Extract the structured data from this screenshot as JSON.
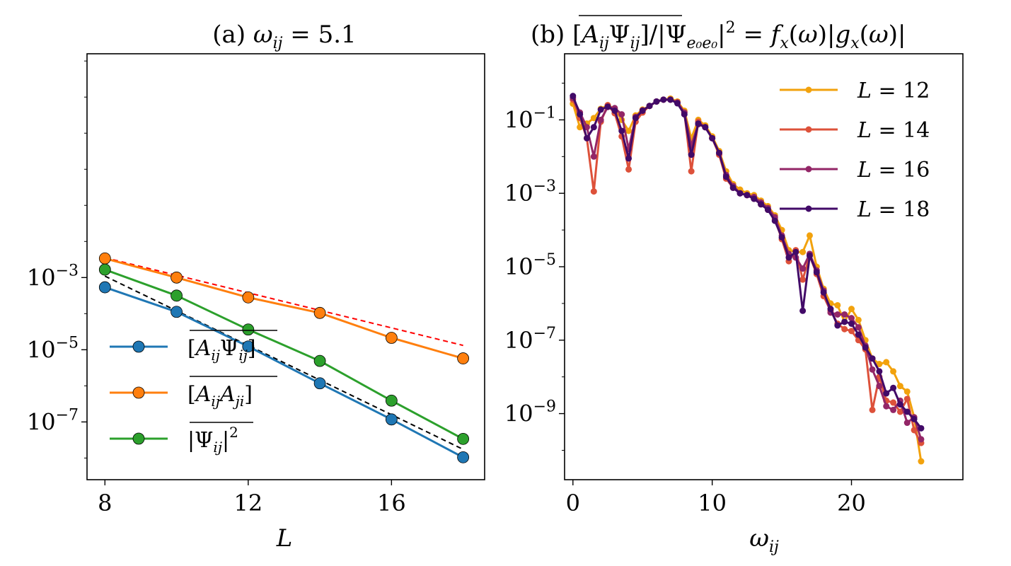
{
  "chart_data": [
    {
      "type": "line",
      "title": "(a) ω_ij = 5.1",
      "xlabel": "L",
      "ylabel": "",
      "yscale": "log",
      "xlim": [
        7.5,
        18.6
      ],
      "ylim_log10": [
        -8.6,
        3.2
      ],
      "xticks": [
        8,
        12,
        16
      ],
      "xtick_labels": [
        "8",
        "12",
        "16"
      ],
      "yticks_log10": [
        -7,
        -5,
        -3
      ],
      "ytick_labels": [
        "10⁻⁷",
        "10⁻⁵",
        "10⁻³"
      ],
      "grid": false,
      "legend_position": "lower-left",
      "x": [
        8,
        10,
        12,
        14,
        16,
        18
      ],
      "series": [
        {
          "name": "[A_ij Ψ_ij]",
          "color": "#1f77b4",
          "log10_values": [
            -3.27,
            -3.95,
            -4.91,
            -5.93,
            -6.93,
            -7.98
          ]
        },
        {
          "name": "[A_ij A_ji]",
          "color": "#ff7f0e",
          "log10_values": [
            -2.47,
            -3.0,
            -3.55,
            -3.98,
            -4.67,
            -5.24
          ]
        },
        {
          "name": "|Ψ_ij|²",
          "color": "#2ca02c",
          "log10_values": [
            -2.78,
            -3.5,
            -4.44,
            -5.31,
            -6.41,
            -7.47
          ]
        }
      ],
      "reference_lines": [
        {
          "color": "#ff0000",
          "style": "dashed",
          "x": [
            8,
            18
          ],
          "log10_values": [
            -2.45,
            -4.88
          ]
        },
        {
          "color": "#000000",
          "style": "dashed",
          "x": [
            8,
            18
          ],
          "log10_values": [
            -2.96,
            -7.76
          ]
        }
      ]
    },
    {
      "type": "line",
      "title": "(b) [A_ij Ψ_ij]/|Ψ_e0e0|² = f_x(ω)|g_x(ω)|",
      "xlabel": "ω_ij",
      "ylabel": "",
      "yscale": "log",
      "xlim": [
        -0.6,
        28
      ],
      "ylim_log10": [
        -10.8,
        0.8
      ],
      "xticks": [
        0,
        10,
        20
      ],
      "xtick_labels": [
        "0",
        "10",
        "20"
      ],
      "yticks_log10": [
        -9,
        -7,
        -5,
        -3,
        -1
      ],
      "ytick_labels": [
        "10⁻⁹",
        "10⁻⁷",
        "10⁻⁵",
        "10⁻³",
        "10⁻¹"
      ],
      "grid": false,
      "legend_position": "top-right",
      "x": [
        0,
        0.5,
        1,
        1.5,
        2,
        2.5,
        3,
        3.5,
        4,
        4.5,
        5,
        5.5,
        6,
        6.5,
        7,
        7.5,
        8,
        8.5,
        9,
        9.5,
        10,
        10.5,
        11,
        11.5,
        12,
        12.5,
        13,
        13.5,
        14,
        14.5,
        15,
        15.5,
        16,
        16.5,
        17,
        17.5,
        18,
        18.5,
        19,
        19.5,
        20,
        20.5,
        21,
        21.5,
        22,
        22.5,
        23,
        23.5,
        24,
        24.5,
        25
      ],
      "series": [
        {
          "name": "L = 12",
          "color": "#f2a20d",
          "log10_values": [
            -0.56,
            -1.2,
            -1.1,
            -0.95,
            -0.7,
            -0.6,
            -0.7,
            -1.0,
            -1.3,
            -0.88,
            -0.72,
            -0.62,
            -0.5,
            -0.45,
            -0.42,
            -0.5,
            -0.75,
            -1.5,
            -1.0,
            -1.15,
            -1.45,
            -1.85,
            -2.4,
            -2.75,
            -2.9,
            -3.0,
            -3.05,
            -3.2,
            -3.35,
            -3.6,
            -4.0,
            -4.55,
            -4.6,
            -4.6,
            -4.15,
            -5.0,
            -5.6,
            -6.0,
            -6.05,
            -6.5,
            -6.15,
            -6.45,
            -7.0,
            -7.5,
            -7.65,
            -7.6,
            -7.85,
            -8.25,
            -8.4,
            -9.1,
            -10.3
          ]
        },
        {
          "name": "L = 14",
          "color": "#dd513a",
          "log10_values": [
            -0.45,
            -0.95,
            -1.5,
            -2.95,
            -1.05,
            -0.6,
            -0.82,
            -1.45,
            -2.35,
            -1.05,
            -0.8,
            -0.62,
            -0.5,
            -0.45,
            -0.45,
            -0.52,
            -0.8,
            -2.4,
            -1.05,
            -1.2,
            -1.5,
            -1.95,
            -2.6,
            -2.85,
            -3.0,
            -3.05,
            -3.15,
            -3.3,
            -3.45,
            -3.7,
            -4.25,
            -4.85,
            -4.55,
            -5.35,
            -4.7,
            -5.2,
            -5.8,
            -6.2,
            -6.55,
            -6.7,
            -6.75,
            -7.0,
            -7.25,
            -8.9,
            -8.0,
            -8.65,
            -8.7,
            -8.95,
            -8.6,
            -9.45,
            -9.8
          ]
        },
        {
          "name": "L = 16",
          "color": "#932667",
          "log10_values": [
            -0.4,
            -0.8,
            -1.2,
            -2.0,
            -1.0,
            -0.65,
            -0.68,
            -0.85,
            -1.8,
            -0.92,
            -0.74,
            -0.62,
            -0.5,
            -0.45,
            -0.45,
            -0.53,
            -0.8,
            -1.7,
            -1.12,
            -1.2,
            -1.5,
            -1.9,
            -2.5,
            -2.8,
            -3.0,
            -3.05,
            -3.1,
            -3.25,
            -3.4,
            -3.65,
            -4.15,
            -4.65,
            -4.75,
            -5.05,
            -4.65,
            -5.1,
            -5.65,
            -6.25,
            -6.3,
            -6.3,
            -6.4,
            -6.65,
            -7.15,
            -7.8,
            -8.25,
            -8.8,
            -8.9,
            -8.65,
            -9.25,
            -9.1,
            -9.7
          ]
        },
        {
          "name": "L = 18",
          "color": "#420a68",
          "log10_values": [
            -0.35,
            -0.85,
            -1.5,
            -1.2,
            -0.72,
            -0.64,
            -0.75,
            -1.3,
            -2.05,
            -0.95,
            -0.75,
            -0.62,
            -0.5,
            -0.45,
            -0.45,
            -0.55,
            -0.85,
            -1.95,
            -1.1,
            -1.2,
            -1.5,
            -1.9,
            -2.55,
            -2.85,
            -3.0,
            -3.05,
            -3.15,
            -3.3,
            -3.45,
            -3.75,
            -4.2,
            -4.75,
            -4.6,
            -6.2,
            -4.7,
            -5.15,
            -5.7,
            -6.15,
            -6.6,
            -6.5,
            -6.55,
            -6.85,
            -7.2,
            -7.5,
            -7.85,
            -8.45,
            -8.3,
            -8.75,
            -8.95,
            -9.15,
            -9.4
          ]
        }
      ]
    }
  ]
}
